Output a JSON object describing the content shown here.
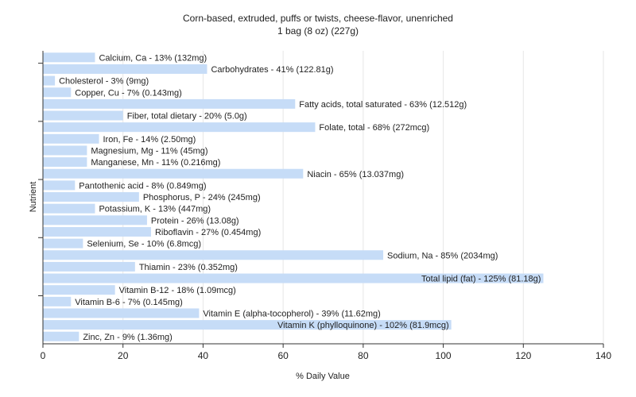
{
  "chart_data": {
    "type": "bar",
    "orientation": "horizontal",
    "title": "Corn-based, extruded, puffs or twists, cheese-flavor, unenriched",
    "subtitle": "1 bag (8 oz) (227g)",
    "xlabel": "% Daily Value",
    "ylabel": "Nutrient",
    "xlim": [
      0,
      140
    ],
    "xticks": [
      0,
      20,
      40,
      60,
      80,
      100,
      120,
      140
    ],
    "grid": true,
    "bar_color": "#c6dcf7",
    "categories": [
      "Calcium, Ca",
      "Carbohydrates",
      "Cholesterol",
      "Copper, Cu",
      "Fatty acids, total saturated",
      "Fiber, total dietary",
      "Folate, total",
      "Iron, Fe",
      "Magnesium, Mg",
      "Manganese, Mn",
      "Niacin",
      "Pantothenic acid",
      "Phosphorus, P",
      "Potassium, K",
      "Protein",
      "Riboflavin",
      "Selenium, Se",
      "Sodium, Na",
      "Thiamin",
      "Total lipid (fat)",
      "Vitamin B-12",
      "Vitamin B-6",
      "Vitamin E (alpha-tocopherol)",
      "Vitamin K (phylloquinone)",
      "Zinc, Zn"
    ],
    "values": [
      13,
      41,
      3,
      7,
      63,
      20,
      68,
      14,
      11,
      11,
      65,
      8,
      24,
      13,
      26,
      27,
      10,
      85,
      23,
      125,
      18,
      7,
      39,
      102,
      9
    ],
    "labels": [
      "Calcium, Ca - 13% (132mg)",
      "Carbohydrates - 41% (122.81g)",
      "Cholesterol - 3% (9mg)",
      "Copper, Cu - 7% (0.143mg)",
      "Fatty acids, total saturated - 63% (12.512g)",
      "Fiber, total dietary - 20% (5.0g)",
      "Folate, total - 68% (272mcg)",
      "Iron, Fe - 14% (2.50mg)",
      "Magnesium, Mg - 11% (45mg)",
      "Manganese, Mn - 11% (0.216mg)",
      "Niacin - 65% (13.037mg)",
      "Pantothenic acid - 8% (0.849mg)",
      "Phosphorus, P - 24% (245mg)",
      "Potassium, K - 13% (447mg)",
      "Protein - 26% (13.08g)",
      "Riboflavin - 27% (0.454mg)",
      "Selenium, Se - 10% (6.8mcg)",
      "Sodium, Na - 85% (2034mg)",
      "Thiamin - 23% (0.352mg)",
      "Total lipid (fat) - 125% (81.18g)",
      "Vitamin B-12 - 18% (1.09mcg)",
      "Vitamin B-6 - 7% (0.145mg)",
      "Vitamin E (alpha-tocopherol) - 39% (11.62mg)",
      "Vitamin K (phylloquinone) - 102% (81.9mcg)",
      "Zinc, Zn - 9% (1.36mg)"
    ]
  }
}
